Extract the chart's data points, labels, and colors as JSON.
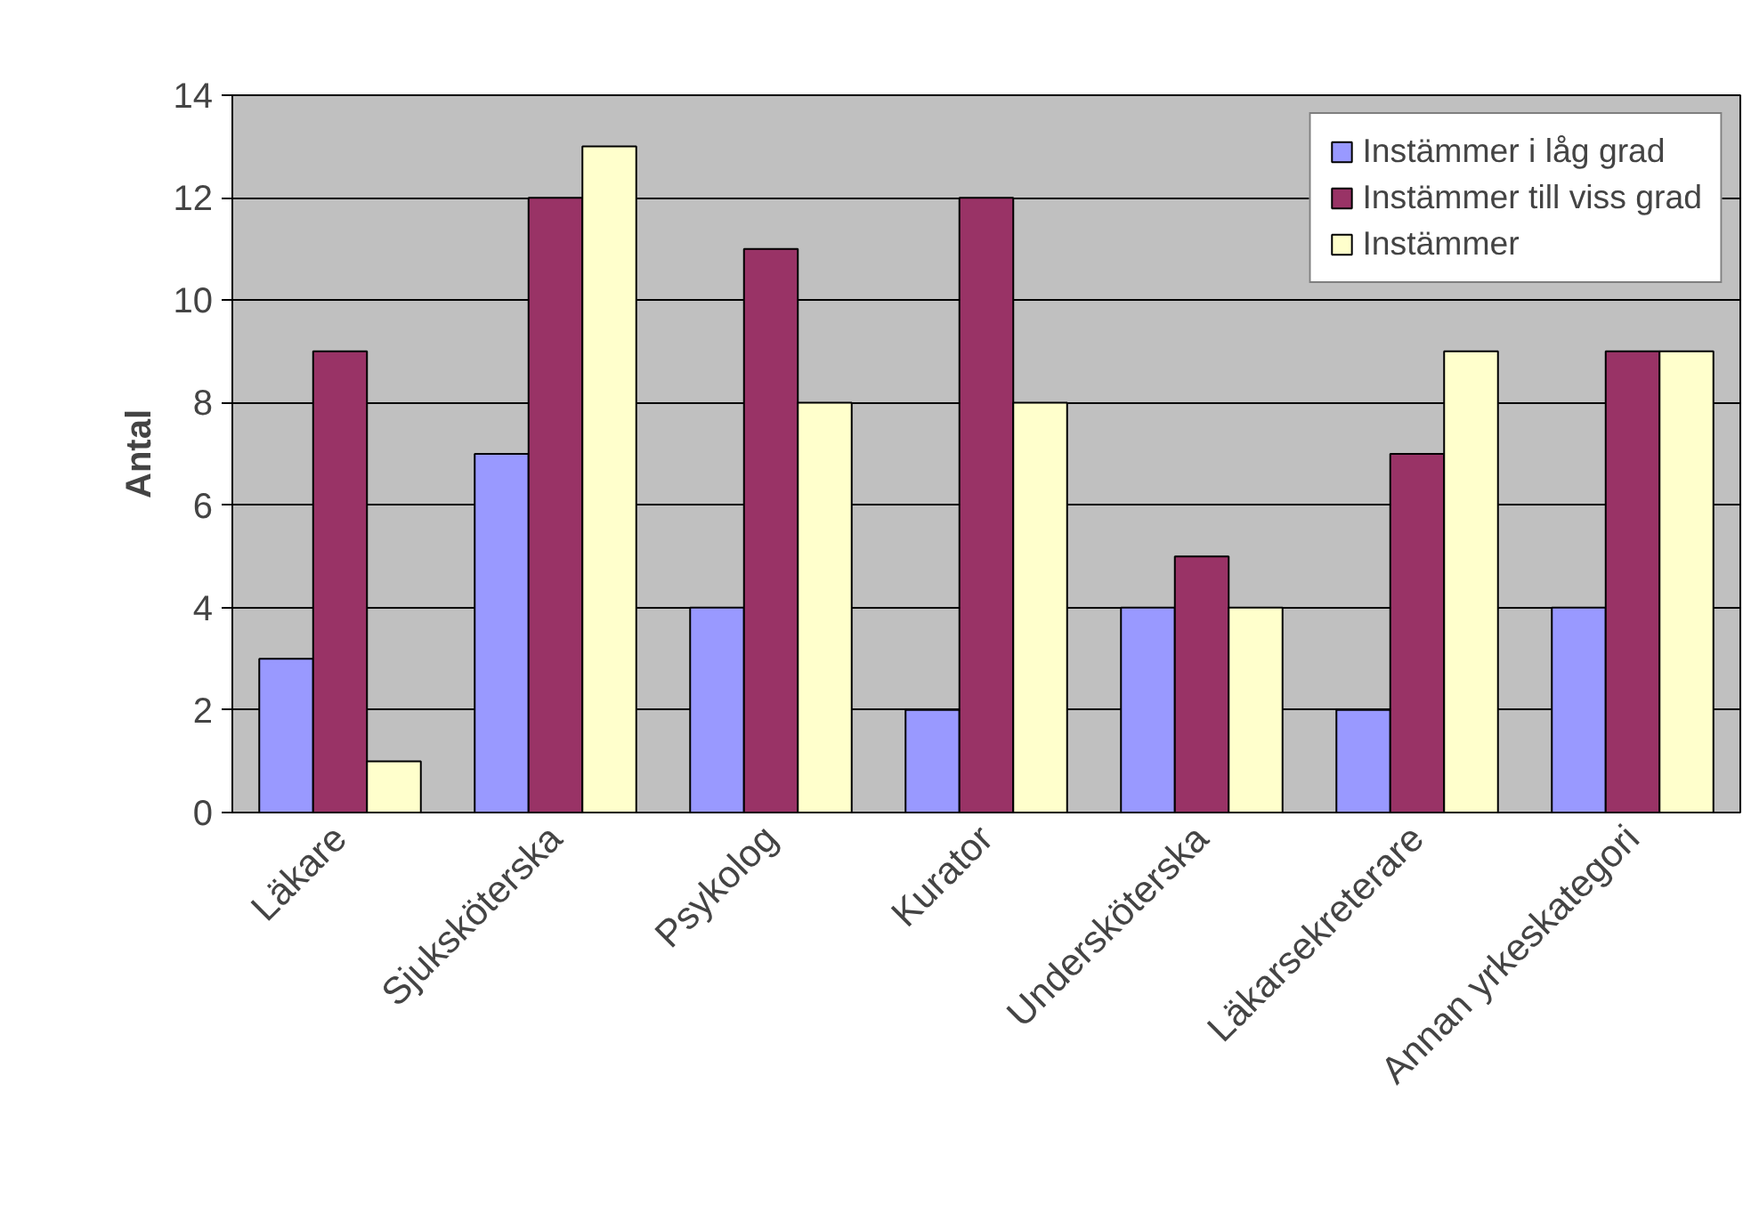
{
  "chart_data": {
    "type": "bar",
    "ylabel": "Antal",
    "categories": [
      "Läkare",
      "Sjuksköterska",
      "Psykolog",
      "Kurator",
      "Undersköterska",
      "Läkarsekreterare",
      "Annan yrkeskategori"
    ],
    "series": [
      {
        "name": "Instämmer i låg grad",
        "color": "#9999ff",
        "values": [
          3,
          7,
          4,
          2,
          4,
          2,
          4
        ]
      },
      {
        "name": "Instämmer till viss grad",
        "color": "#993366",
        "values": [
          9,
          12,
          11,
          12,
          5,
          7,
          9
        ]
      },
      {
        "name": "Instämmer",
        "color": "#ffffcc",
        "values": [
          1,
          13,
          8,
          8,
          4,
          9,
          9
        ]
      }
    ],
    "ylim": [
      0,
      14
    ],
    "yticks": [
      0,
      2,
      4,
      6,
      8,
      10,
      12,
      14
    ],
    "grid": "y",
    "legend": "top right"
  }
}
